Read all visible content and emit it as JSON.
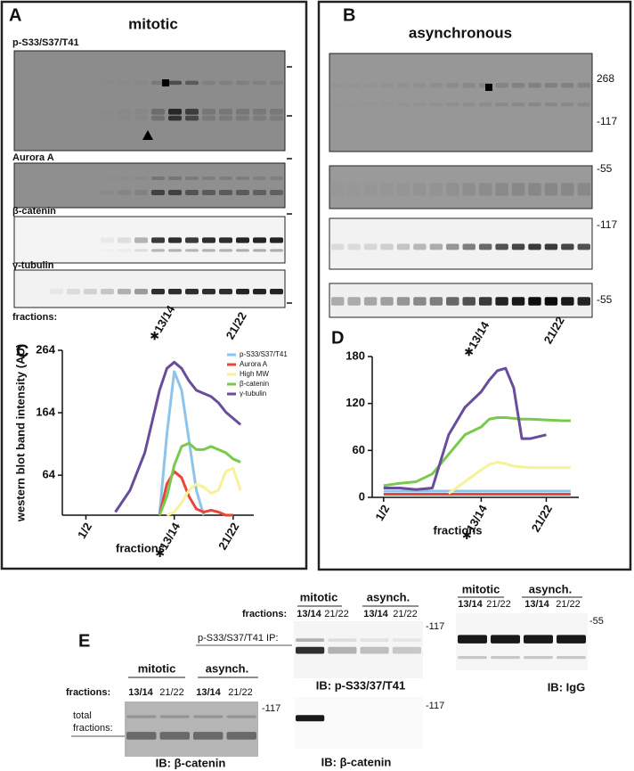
{
  "panel_a": {
    "letter": "A",
    "title": "mitotic",
    "blots": [
      "p-S33/S37/T41",
      "Aurora A",
      "β-catenin",
      "γ-tubulin"
    ],
    "fractions_label": "fractions:",
    "fraction_labels": [
      "✱13/14",
      "21/22"
    ]
  },
  "panel_b": {
    "letter": "B",
    "title": "asynchronous",
    "markers": [
      "268",
      "-117",
      "-55",
      "-117",
      "-55"
    ],
    "fraction_labels": [
      "✱13/14",
      "21/22"
    ]
  },
  "chart_data": [
    {
      "type": "line",
      "panel": "C",
      "ylabel": "western blot band intensity (AU)",
      "xlabel": "fractions",
      "x": [
        3,
        4,
        5,
        6,
        6.5,
        7,
        7.5,
        8,
        8.5,
        9,
        9.5,
        10,
        10.5,
        11,
        11.5
      ],
      "xlim": [
        -0.6,
        12.4
      ],
      "xticks": [
        {
          "value": 1,
          "label": "1/2"
        },
        {
          "value": 7,
          "label": "✱13/14"
        },
        {
          "value": 11,
          "label": "21/22"
        }
      ],
      "ylim": [
        0,
        264
      ],
      "yticks": [
        64,
        164,
        264
      ],
      "legend": "upper right",
      "series": [
        {
          "name": "p-S33/S37/T41",
          "color": "#8cc4ec",
          "values": [
            null,
            null,
            null,
            0,
            130,
            230,
            200,
            120,
            40,
            0,
            null,
            null,
            null,
            null,
            null
          ]
        },
        {
          "name": "Aurora A",
          "color": "#e8453c",
          "values": [
            null,
            null,
            null,
            0,
            50,
            70,
            60,
            30,
            10,
            5,
            8,
            5,
            0,
            0,
            null
          ]
        },
        {
          "name": "High MW",
          "color": "#f7f29a",
          "values": [
            null,
            null,
            null,
            null,
            0,
            5,
            20,
            40,
            50,
            45,
            35,
            40,
            70,
            75,
            40
          ]
        },
        {
          "name": "β-catenin",
          "color": "#7ac94f",
          "values": [
            null,
            null,
            null,
            0,
            30,
            80,
            110,
            115,
            105,
            105,
            110,
            105,
            100,
            90,
            85
          ]
        },
        {
          "name": "γ-tubulin",
          "color": "#6a4c9c",
          "values": [
            5,
            40,
            100,
            200,
            235,
            245,
            235,
            215,
            200,
            195,
            190,
            180,
            165,
            155,
            145
          ]
        }
      ]
    },
    {
      "type": "line",
      "panel": "D",
      "xlabel": "fractions",
      "x": [
        1,
        2,
        3,
        4,
        5,
        6,
        7,
        7.5,
        8,
        8.5,
        9,
        9.5,
        10,
        11,
        12,
        12.5
      ],
      "xlim": [
        0.3,
        13
      ],
      "xticks": [
        {
          "value": 1,
          "label": "1/2"
        },
        {
          "value": 7,
          "label": "✱13/14"
        },
        {
          "value": 11,
          "label": "21/22"
        }
      ],
      "ylim": [
        0,
        180
      ],
      "yticks": [
        0,
        60,
        120,
        180
      ],
      "series": [
        {
          "color": "#8cc4ec",
          "values": [
            8,
            8,
            8,
            8,
            8,
            8,
            8,
            8,
            8,
            8,
            8,
            8,
            8,
            8,
            8,
            8
          ]
        },
        {
          "color": "#e8453c",
          "values": [
            4,
            4,
            4,
            4,
            4,
            4,
            4,
            4,
            4,
            4,
            4,
            4,
            4,
            4,
            4,
            4
          ]
        },
        {
          "color": "#f7f29a",
          "values": [
            null,
            null,
            null,
            null,
            5,
            20,
            35,
            42,
            45,
            43,
            40,
            39,
            38,
            38,
            38,
            38
          ]
        },
        {
          "color": "#7ac94f",
          "values": [
            15,
            18,
            20,
            30,
            55,
            80,
            90,
            100,
            102,
            102,
            101,
            100,
            100,
            99,
            98,
            98
          ]
        },
        {
          "color": "#6a4c9c",
          "values": [
            12,
            12,
            10,
            12,
            80,
            115,
            135,
            150,
            162,
            165,
            140,
            75,
            75,
            80,
            null,
            null
          ]
        }
      ]
    }
  ],
  "panel_e": {
    "letter": "E",
    "ip": {
      "groups": [
        "mitotic",
        "asynch."
      ],
      "fractions_label": "fractions:",
      "fractions": [
        "13/14",
        "21/22",
        "13/14",
        "21/22"
      ],
      "row_label": "p-S33/S37/T41 IP:",
      "marker_top": "-117",
      "ib_top": "IB: p-S33/37/T41",
      "marker_bottom": "-117",
      "ib_bottom": "IB: β-catenin"
    },
    "igg": {
      "groups": [
        "mitotic",
        "asynch."
      ],
      "fractions": [
        "13/14",
        "21/22",
        "13/14",
        "21/22"
      ],
      "marker": "-55",
      "ib": "IB: IgG"
    },
    "total": {
      "groups": [
        "mitotic",
        "asynch."
      ],
      "fractions_label": "fractions:",
      "fractions": [
        "13/14",
        "21/22",
        "13/14",
        "21/22"
      ],
      "row_label": [
        "total",
        "fractions:"
      ],
      "marker": "-117",
      "ib": "IB: β-catenin"
    }
  }
}
